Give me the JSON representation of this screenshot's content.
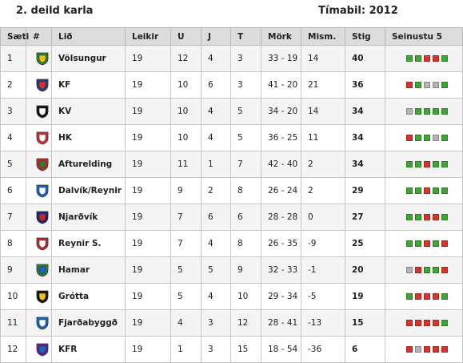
{
  "header": {
    "league_title": "2. deild karla",
    "season_label": "Tímabil: 2012"
  },
  "table": {
    "columns": [
      "Sæti",
      "#",
      "Lið",
      "Leikir",
      "U",
      "J",
      "T",
      "Mörk",
      "Mism.",
      "Stig",
      "Seinustu 5"
    ],
    "rows": [
      {
        "pos": "1",
        "team": "Völsungur",
        "played": "19",
        "won": "12",
        "drawn": "4",
        "lost": "3",
        "goals": "33 - 19",
        "diff": "14",
        "pts": "40",
        "form": [
          "W",
          "W",
          "L",
          "L",
          "W"
        ],
        "crest_icon": "volsungur-crest-icon",
        "crest_colors": [
          "#2e7d32",
          "#f2c200"
        ]
      },
      {
        "pos": "2",
        "team": "KF",
        "played": "19",
        "won": "10",
        "drawn": "6",
        "lost": "3",
        "goals": "41 - 20",
        "diff": "21",
        "pts": "36",
        "form": [
          "L",
          "W",
          "D",
          "D",
          "W"
        ],
        "crest_icon": "kf-crest-icon",
        "crest_colors": [
          "#1f3b8a",
          "#d32f2f"
        ]
      },
      {
        "pos": "3",
        "team": "KV",
        "played": "19",
        "won": "10",
        "drawn": "4",
        "lost": "5",
        "goals": "34 - 20",
        "diff": "14",
        "pts": "34",
        "form": [
          "D",
          "W",
          "W",
          "W",
          "W"
        ],
        "crest_icon": "kv-crest-icon",
        "crest_colors": [
          "#111111",
          "#ffffff"
        ]
      },
      {
        "pos": "4",
        "team": "HK",
        "played": "19",
        "won": "10",
        "drawn": "4",
        "lost": "5",
        "goals": "36 - 25",
        "diff": "11",
        "pts": "34",
        "form": [
          "L",
          "W",
          "W",
          "D",
          "W"
        ],
        "crest_icon": "hk-crest-icon",
        "crest_colors": [
          "#d32f2f",
          "#ffffff"
        ]
      },
      {
        "pos": "5",
        "team": "Afturelding",
        "played": "19",
        "won": "11",
        "drawn": "1",
        "lost": "7",
        "goals": "42 - 40",
        "diff": "2",
        "pts": "34",
        "form": [
          "W",
          "W",
          "L",
          "W",
          "W"
        ],
        "crest_icon": "afturelding-crest-icon",
        "crest_colors": [
          "#c62828",
          "#2e7d32"
        ]
      },
      {
        "pos": "6",
        "team": "Dalvík/Reynir",
        "played": "19",
        "won": "9",
        "drawn": "2",
        "lost": "8",
        "goals": "26 - 24",
        "diff": "2",
        "pts": "29",
        "form": [
          "W",
          "W",
          "L",
          "W",
          "W"
        ],
        "crest_icon": "dalvik-reynir-crest-icon",
        "crest_colors": [
          "#1565c0",
          "#ffffff"
        ]
      },
      {
        "pos": "7",
        "team": "Njarðvík",
        "played": "19",
        "won": "7",
        "drawn": "6",
        "lost": "6",
        "goals": "28 - 28",
        "diff": "0",
        "pts": "27",
        "form": [
          "W",
          "W",
          "L",
          "L",
          "W"
        ],
        "crest_icon": "njardvik-crest-icon",
        "crest_colors": [
          "#1a237e",
          "#c62828"
        ]
      },
      {
        "pos": "8",
        "team": "Reynir S.",
        "played": "19",
        "won": "7",
        "drawn": "4",
        "lost": "8",
        "goals": "26 - 35",
        "diff": "-9",
        "pts": "25",
        "form": [
          "W",
          "W",
          "L",
          "W",
          "L"
        ],
        "crest_icon": "reynir-s-crest-icon",
        "crest_colors": [
          "#c62828",
          "#ffffff"
        ]
      },
      {
        "pos": "9",
        "team": "Hamar",
        "played": "19",
        "won": "5",
        "drawn": "5",
        "lost": "9",
        "goals": "32 - 33",
        "diff": "-1",
        "pts": "20",
        "form": [
          "D",
          "L",
          "W",
          "W",
          "L"
        ],
        "crest_icon": "hamar-crest-icon",
        "crest_colors": [
          "#2e7d32",
          "#1565c0"
        ]
      },
      {
        "pos": "10",
        "team": "Grótta",
        "played": "19",
        "won": "5",
        "drawn": "4",
        "lost": "10",
        "goals": "29 - 34",
        "diff": "-5",
        "pts": "19",
        "form": [
          "W",
          "L",
          "L",
          "L",
          "W"
        ],
        "crest_icon": "grotta-crest-icon",
        "crest_colors": [
          "#111111",
          "#f2c200"
        ]
      },
      {
        "pos": "11",
        "team": "Fjarðabyggð",
        "played": "19",
        "won": "4",
        "drawn": "3",
        "lost": "12",
        "goals": "28 - 41",
        "diff": "-13",
        "pts": "15",
        "form": [
          "L",
          "L",
          "L",
          "L",
          "W"
        ],
        "crest_icon": "fjardabyggd-crest-icon",
        "crest_colors": [
          "#1565c0",
          "#ffffff"
        ]
      },
      {
        "pos": "12",
        "team": "KFR",
        "played": "19",
        "won": "1",
        "drawn": "3",
        "lost": "15",
        "goals": "18 - 54",
        "diff": "-36",
        "pts": "6",
        "form": [
          "L",
          "D",
          "L",
          "L",
          "L"
        ],
        "crest_icon": "kfr-crest-icon",
        "crest_colors": [
          "#6a1b9a",
          "#1565c0"
        ]
      }
    ]
  },
  "colors": {
    "win": "#3fa535",
    "loss": "#d9342b",
    "draw": "#b5b5b5",
    "header_bg": "#dcdcdc"
  }
}
